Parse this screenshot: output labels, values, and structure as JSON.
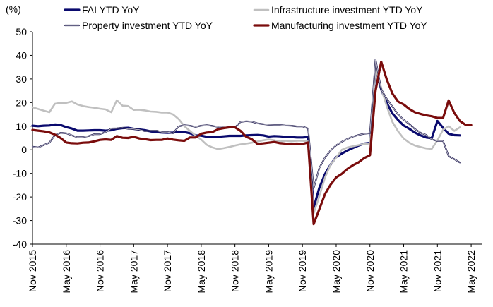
{
  "chart_data": {
    "type": "line",
    "ylabel": "(%)",
    "ylim": [
      -40,
      50
    ],
    "yticks": [
      -40,
      -30,
      -20,
      -10,
      0,
      10,
      20,
      30,
      40,
      50
    ],
    "x_range": [
      0,
      80
    ],
    "xticks": [
      {
        "i": 0,
        "label": "Nov 2015"
      },
      {
        "i": 6,
        "label": "May 2016"
      },
      {
        "i": 12,
        "label": "Nov 2016"
      },
      {
        "i": 18,
        "label": "May 2017"
      },
      {
        "i": 24,
        "label": "Nov 2017"
      },
      {
        "i": 30,
        "label": "May 2018"
      },
      {
        "i": 36,
        "label": "Nov 2018"
      },
      {
        "i": 42,
        "label": "May 2019"
      },
      {
        "i": 48,
        "label": "Nov 2019"
      },
      {
        "i": 54,
        "label": "May 2020"
      },
      {
        "i": 60,
        "label": "Nov 2020"
      },
      {
        "i": 66,
        "label": "May 2021"
      },
      {
        "i": 72,
        "label": "Nov 2021"
      },
      {
        "i": 78,
        "label": "May 2022"
      }
    ],
    "legend": [
      {
        "name": "FAI YTD YoY",
        "color": "#0a0a6e"
      },
      {
        "name": "Infrastructure investment YTD YoY",
        "color": "#c0c0c0"
      },
      {
        "name": "Property investment YTD YoY",
        "color": "#2e2a5a"
      },
      {
        "name": "Manufacturing investment YTD YoY",
        "color": "#7a0c0c"
      }
    ],
    "series": [
      {
        "name": "FAI YTD YoY",
        "color": "#0a0a6e",
        "width": 3.2,
        "double": false,
        "points": [
          [
            0,
            10.2
          ],
          [
            1,
            10.0
          ],
          [
            2,
            10.2
          ],
          [
            3,
            10.3
          ],
          [
            4,
            10.7
          ],
          [
            5,
            10.5
          ],
          [
            6,
            9.6
          ],
          [
            7,
            9.0
          ],
          [
            8,
            8.1
          ],
          [
            9,
            8.1
          ],
          [
            10,
            8.2
          ],
          [
            11,
            8.3
          ],
          [
            12,
            8.3
          ],
          [
            13,
            8.1
          ],
          [
            14,
            8.3
          ],
          [
            15,
            8.9
          ],
          [
            16,
            9.2
          ],
          [
            17,
            9.3
          ],
          [
            18,
            8.9
          ],
          [
            19,
            8.6
          ],
          [
            20,
            8.3
          ],
          [
            21,
            7.8
          ],
          [
            22,
            7.5
          ],
          [
            23,
            7.3
          ],
          [
            24,
            7.2
          ],
          [
            25,
            7.3
          ],
          [
            26,
            7.7
          ],
          [
            27,
            7.5
          ],
          [
            28,
            7.0
          ],
          [
            29,
            6.1
          ],
          [
            30,
            6.0
          ],
          [
            31,
            5.5
          ],
          [
            32,
            5.4
          ],
          [
            33,
            5.5
          ],
          [
            34,
            5.7
          ],
          [
            35,
            5.9
          ],
          [
            36,
            5.9
          ],
          [
            37,
            5.9
          ],
          [
            38,
            6.1
          ],
          [
            39,
            6.2
          ],
          [
            40,
            6.3
          ],
          [
            41,
            6.1
          ],
          [
            42,
            5.6
          ],
          [
            43,
            5.8
          ],
          [
            44,
            5.7
          ],
          [
            45,
            5.5
          ],
          [
            46,
            5.4
          ],
          [
            47,
            5.2
          ],
          [
            48,
            5.2
          ],
          [
            49,
            5.4
          ],
          [
            50,
            -24.5
          ],
          [
            51,
            -16.1
          ],
          [
            52,
            -10.3
          ],
          [
            53,
            -6.3
          ],
          [
            54,
            -3.1
          ],
          [
            55,
            -1.6
          ],
          [
            56,
            -0.3
          ],
          [
            57,
            0.8
          ],
          [
            58,
            1.8
          ],
          [
            59,
            2.6
          ],
          [
            60,
            2.9
          ],
          [
            61,
            35.0
          ],
          [
            62,
            25.6
          ],
          [
            63,
            19.9
          ],
          [
            64,
            15.4
          ],
          [
            65,
            12.6
          ],
          [
            66,
            10.3
          ],
          [
            67,
            8.9
          ],
          [
            68,
            7.3
          ],
          [
            69,
            6.1
          ],
          [
            70,
            5.2
          ],
          [
            71,
            4.9
          ],
          [
            72,
            12.2
          ],
          [
            73,
            9.3
          ],
          [
            74,
            6.8
          ],
          [
            75,
            6.2
          ],
          [
            76,
            6.1
          ]
        ]
      },
      {
        "name": "Infrastructure investment YTD YoY",
        "color": "#c0c0c0",
        "width": 2.6,
        "double": false,
        "points": [
          [
            0,
            18.0
          ],
          [
            1,
            17.3
          ],
          [
            2,
            16.6
          ],
          [
            3,
            15.9
          ],
          [
            4,
            19.5
          ],
          [
            5,
            19.9
          ],
          [
            6,
            19.9
          ],
          [
            7,
            20.5
          ],
          [
            8,
            19.2
          ],
          [
            9,
            18.5
          ],
          [
            10,
            18.1
          ],
          [
            11,
            17.8
          ],
          [
            12,
            17.4
          ],
          [
            13,
            17.1
          ],
          [
            14,
            15.9
          ],
          [
            15,
            21.0
          ],
          [
            16,
            18.7
          ],
          [
            17,
            18.5
          ],
          [
            18,
            16.9
          ],
          [
            19,
            17.0
          ],
          [
            20,
            16.7
          ],
          [
            21,
            16.2
          ],
          [
            22,
            16.1
          ],
          [
            23,
            15.8
          ],
          [
            24,
            15.8
          ],
          [
            25,
            15.0
          ],
          [
            26,
            13.0
          ],
          [
            27,
            10.0
          ],
          [
            28,
            8.0
          ],
          [
            29,
            6.0
          ],
          [
            30,
            4.3
          ],
          [
            31,
            2.1
          ],
          [
            32,
            1.0
          ],
          [
            33,
            0.3
          ],
          [
            34,
            0.7
          ],
          [
            35,
            1.2
          ],
          [
            36,
            1.8
          ],
          [
            37,
            2.3
          ],
          [
            38,
            2.6
          ],
          [
            39,
            3.0
          ],
          [
            40,
            3.5
          ],
          [
            41,
            4.0
          ],
          [
            42,
            4.4
          ],
          [
            43,
            4.0
          ],
          [
            44,
            3.5
          ],
          [
            45,
            3.8
          ],
          [
            46,
            3.6
          ],
          [
            47,
            3.8
          ],
          [
            48,
            3.8
          ],
          [
            49,
            3.5
          ],
          [
            50,
            -26.9
          ],
          [
            51,
            -19.7
          ],
          [
            52,
            -11.8
          ],
          [
            53,
            -6.3
          ],
          [
            54,
            -3.3
          ],
          [
            55,
            0.0
          ],
          [
            56,
            1.0
          ],
          [
            57,
            1.5
          ],
          [
            58,
            2.0
          ],
          [
            59,
            2.4
          ],
          [
            60,
            2.7
          ],
          [
            61,
            34.8
          ],
          [
            62,
            26.2
          ],
          [
            63,
            18.4
          ],
          [
            64,
            11.8
          ],
          [
            65,
            7.8
          ],
          [
            66,
            4.8
          ],
          [
            67,
            3.0
          ],
          [
            68,
            1.8
          ],
          [
            69,
            1.2
          ],
          [
            70,
            0.6
          ],
          [
            71,
            0.4
          ],
          [
            72,
            4.0
          ],
          [
            73,
            8.5
          ],
          [
            74,
            10.0
          ],
          [
            75,
            8.0
          ],
          [
            76,
            9.5
          ]
        ]
      },
      {
        "name": "Property investment YTD YoY",
        "color": "#2e2a5a",
        "width": 2.2,
        "double": true,
        "points": [
          [
            0,
            1.3
          ],
          [
            1,
            1.0
          ],
          [
            2,
            2.0
          ],
          [
            3,
            3.0
          ],
          [
            4,
            6.2
          ],
          [
            5,
            7.2
          ],
          [
            6,
            7.0
          ],
          [
            7,
            6.1
          ],
          [
            8,
            5.3
          ],
          [
            9,
            5.4
          ],
          [
            10,
            5.8
          ],
          [
            11,
            6.6
          ],
          [
            12,
            6.6
          ],
          [
            13,
            7.5
          ],
          [
            14,
            9.0
          ],
          [
            15,
            9.1
          ],
          [
            16,
            9.3
          ],
          [
            17,
            8.9
          ],
          [
            18,
            8.8
          ],
          [
            19,
            8.5
          ],
          [
            20,
            7.9
          ],
          [
            21,
            8.1
          ],
          [
            22,
            8.1
          ],
          [
            23,
            7.5
          ],
          [
            24,
            7.5
          ],
          [
            25,
            7.0
          ],
          [
            26,
            9.9
          ],
          [
            27,
            10.4
          ],
          [
            28,
            10.2
          ],
          [
            29,
            9.7
          ],
          [
            30,
            10.2
          ],
          [
            31,
            10.4
          ],
          [
            32,
            10.1
          ],
          [
            33,
            9.7
          ],
          [
            34,
            9.9
          ],
          [
            35,
            9.7
          ],
          [
            36,
            9.5
          ],
          [
            37,
            11.8
          ],
          [
            38,
            12.1
          ],
          [
            39,
            11.9
          ],
          [
            40,
            11.2
          ],
          [
            41,
            10.9
          ],
          [
            42,
            10.6
          ],
          [
            43,
            10.5
          ],
          [
            44,
            10.5
          ],
          [
            45,
            10.3
          ],
          [
            46,
            10.2
          ],
          [
            47,
            9.9
          ],
          [
            48,
            9.9
          ],
          [
            49,
            9.0
          ],
          [
            50,
            -16.3
          ],
          [
            51,
            -7.7
          ],
          [
            52,
            -3.3
          ],
          [
            53,
            -0.3
          ],
          [
            54,
            1.9
          ],
          [
            55,
            3.4
          ],
          [
            56,
            4.6
          ],
          [
            57,
            5.6
          ],
          [
            58,
            6.3
          ],
          [
            59,
            6.8
          ],
          [
            60,
            7.0
          ],
          [
            61,
            38.3
          ],
          [
            62,
            25.6
          ],
          [
            63,
            21.6
          ],
          [
            64,
            18.3
          ],
          [
            65,
            15.0
          ],
          [
            66,
            12.7
          ],
          [
            67,
            10.9
          ],
          [
            68,
            8.8
          ],
          [
            69,
            7.2
          ],
          [
            70,
            6.3
          ],
          [
            71,
            4.4
          ],
          [
            72,
            3.7
          ],
          [
            73,
            3.7
          ],
          [
            74,
            -2.7
          ],
          [
            75,
            -4.0
          ],
          [
            76,
            -5.4
          ]
        ]
      },
      {
        "name": "Manufacturing investment YTD YoY",
        "color": "#7a0c0c",
        "width": 3.2,
        "double": false,
        "points": [
          [
            0,
            8.4
          ],
          [
            1,
            8.1
          ],
          [
            2,
            7.8
          ],
          [
            3,
            7.4
          ],
          [
            4,
            6.4
          ],
          [
            5,
            5.0
          ],
          [
            6,
            3.1
          ],
          [
            7,
            2.8
          ],
          [
            8,
            2.7
          ],
          [
            9,
            3.0
          ],
          [
            10,
            3.1
          ],
          [
            11,
            3.6
          ],
          [
            12,
            4.2
          ],
          [
            13,
            4.4
          ],
          [
            14,
            4.2
          ],
          [
            15,
            5.8
          ],
          [
            16,
            5.1
          ],
          [
            17,
            5.0
          ],
          [
            18,
            5.5
          ],
          [
            19,
            4.8
          ],
          [
            20,
            4.5
          ],
          [
            21,
            4.1
          ],
          [
            22,
            4.2
          ],
          [
            23,
            4.2
          ],
          [
            24,
            4.8
          ],
          [
            25,
            4.3
          ],
          [
            26,
            4.0
          ],
          [
            27,
            3.8
          ],
          [
            28,
            5.2
          ],
          [
            29,
            5.2
          ],
          [
            30,
            6.8
          ],
          [
            31,
            7.3
          ],
          [
            32,
            7.5
          ],
          [
            33,
            8.7
          ],
          [
            34,
            9.2
          ],
          [
            35,
            9.5
          ],
          [
            36,
            9.5
          ],
          [
            37,
            8.0
          ],
          [
            38,
            5.5
          ],
          [
            39,
            4.5
          ],
          [
            40,
            2.5
          ],
          [
            41,
            2.7
          ],
          [
            42,
            3.0
          ],
          [
            43,
            3.3
          ],
          [
            44,
            2.8
          ],
          [
            45,
            2.6
          ],
          [
            46,
            2.5
          ],
          [
            47,
            2.6
          ],
          [
            48,
            2.5
          ],
          [
            49,
            3.1
          ],
          [
            50,
            -31.5
          ],
          [
            51,
            -25.2
          ],
          [
            52,
            -18.8
          ],
          [
            53,
            -14.8
          ],
          [
            54,
            -11.7
          ],
          [
            55,
            -10.2
          ],
          [
            56,
            -8.1
          ],
          [
            57,
            -6.5
          ],
          [
            58,
            -5.3
          ],
          [
            59,
            -3.5
          ],
          [
            60,
            -2.3
          ],
          [
            61,
            25.0
          ],
          [
            62,
            37.3
          ],
          [
            63,
            29.8
          ],
          [
            64,
            23.8
          ],
          [
            65,
            20.4
          ],
          [
            66,
            19.2
          ],
          [
            67,
            17.3
          ],
          [
            68,
            15.9
          ],
          [
            69,
            15.2
          ],
          [
            70,
            14.6
          ],
          [
            71,
            14.2
          ],
          [
            72,
            13.5
          ],
          [
            73,
            13.5
          ],
          [
            74,
            20.9
          ],
          [
            75,
            15.6
          ],
          [
            76,
            12.2
          ],
          [
            77,
            10.6
          ],
          [
            78,
            10.4
          ]
        ]
      }
    ]
  }
}
